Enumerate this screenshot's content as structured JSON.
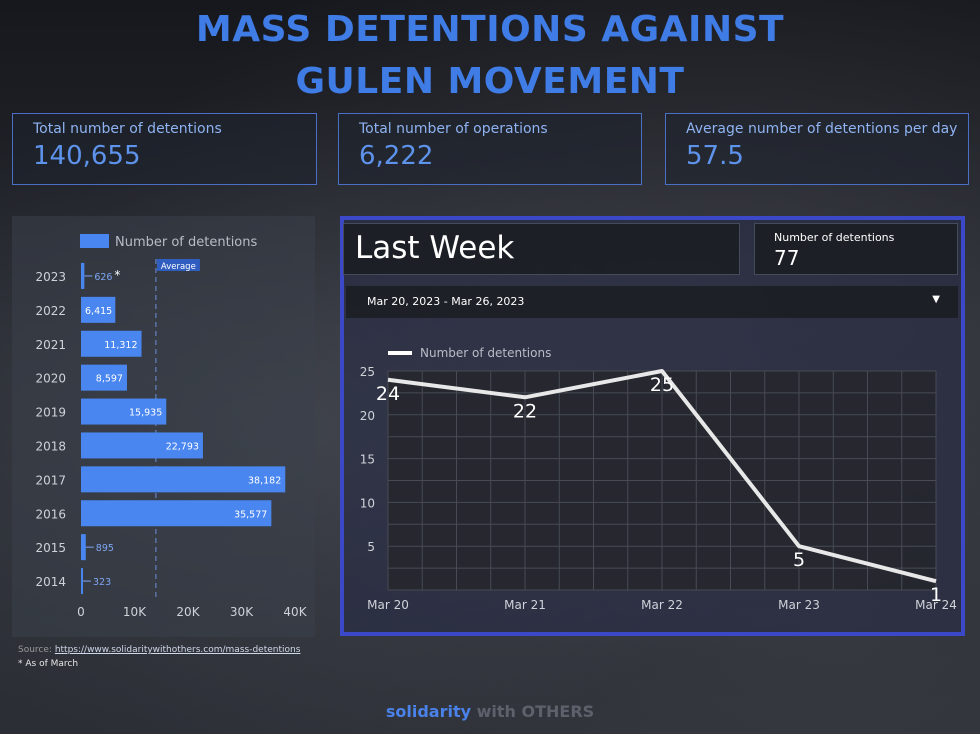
{
  "title_line1": "MASS DETENTIONS AGAINST",
  "title_line2": "GULEN MOVEMENT",
  "kpis": [
    {
      "label": "Total number of detentions",
      "value": "140,655"
    },
    {
      "label": "Total number of operations",
      "value": "6,222"
    },
    {
      "label": "Average number of detentions per day",
      "value": "57.5"
    }
  ],
  "last_week": {
    "title": "Last Week",
    "detentions_label": "Number of detentions",
    "detentions_value": "77",
    "date_range": "Mar 20, 2023 - Mar 26, 2023",
    "dropdown_icon": "caret-down-icon"
  },
  "source": {
    "prefix": "Source: ",
    "url": "https://www.solidaritywithothers.com/mass-detentions"
  },
  "note": "* As of March",
  "footer": {
    "part1": "solidarity",
    "part2": " with OTHERS"
  },
  "colors": {
    "title": "#3f7ce6",
    "bar": "#4a86f0",
    "line": "#e8e8e8",
    "frame": "#3b49c9"
  },
  "chart_data": [
    {
      "type": "bar",
      "orientation": "horizontal",
      "legend": "Number of detentions",
      "categories": [
        "2023",
        "2022",
        "2021",
        "2020",
        "2019",
        "2018",
        "2017",
        "2016",
        "2015",
        "2014"
      ],
      "values": [
        626,
        6415,
        11312,
        8597,
        15935,
        22793,
        38182,
        35577,
        895,
        323
      ],
      "value_labels": [
        "626",
        "6,415",
        "11,312",
        "8,597",
        "15,935",
        "22,793",
        "38,182",
        "35,577",
        "895",
        "323"
      ],
      "category_marker": {
        "2023": "*"
      },
      "reference_line": {
        "label": "Average",
        "value": 14000
      },
      "x_ticks": [
        "0",
        "10K",
        "20K",
        "30K",
        "40K"
      ],
      "xlim": [
        0,
        40000
      ]
    },
    {
      "type": "line",
      "legend": "Number of detentions",
      "x": [
        "Mar 20",
        "Mar 21",
        "Mar 22",
        "Mar 23",
        "Mar 24"
      ],
      "values": [
        24,
        22,
        25,
        5,
        1
      ],
      "y_ticks": [
        "5",
        "10",
        "15",
        "20",
        "25"
      ],
      "ylim": [
        0,
        25
      ]
    }
  ]
}
